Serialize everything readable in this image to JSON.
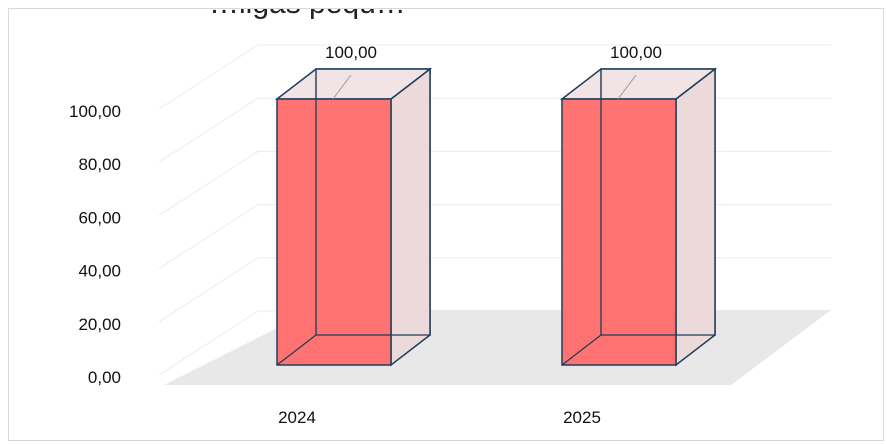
{
  "chart_data": {
    "type": "bar",
    "title": "…ligas pequ…",
    "categories": [
      "2024",
      "2025"
    ],
    "values": [
      100.0,
      100.0
    ],
    "data_labels": [
      "100,00",
      "100,00"
    ],
    "y_ticks": [
      "0,00",
      "20,00",
      "40,00",
      "60,00",
      "80,00",
      "100,00"
    ],
    "ylim": [
      0,
      100
    ],
    "grid": true,
    "style": "3d-column",
    "colors": {
      "bar_front": "#ff6b6b",
      "bar_side": "#ecd9da",
      "bar_edge": "#1f3f5a",
      "floor": "#e8e8e8",
      "grid": "#ececec"
    }
  }
}
